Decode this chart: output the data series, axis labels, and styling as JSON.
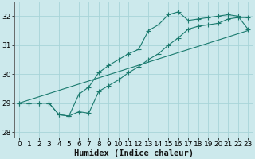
{
  "xlabel": "Humidex (Indice chaleur)",
  "background_color": "#cce9ec",
  "grid_color": "#a8d4d8",
  "line_color": "#1a7a6e",
  "x_values": [
    0,
    1,
    2,
    3,
    4,
    5,
    6,
    7,
    8,
    9,
    10,
    11,
    12,
    13,
    14,
    15,
    16,
    17,
    18,
    19,
    20,
    21,
    22,
    23
  ],
  "line1_y": [
    29.0,
    29.0,
    29.0,
    29.0,
    28.6,
    28.55,
    29.3,
    29.55,
    30.05,
    30.3,
    30.5,
    30.7,
    30.85,
    31.5,
    31.7,
    32.05,
    32.15,
    31.85,
    31.9,
    31.95,
    32.0,
    32.05,
    32.0,
    31.55
  ],
  "line2_y": [
    29.0,
    29.0,
    29.0,
    29.0,
    28.6,
    28.55,
    28.7,
    28.65,
    29.4,
    29.6,
    29.8,
    30.05,
    30.25,
    30.5,
    30.7,
    31.0,
    31.25,
    31.55,
    31.65,
    31.7,
    31.75,
    31.9,
    31.95,
    31.95
  ],
  "trend_x": [
    0,
    23
  ],
  "trend_y": [
    29.0,
    31.5
  ],
  "ylim": [
    27.8,
    32.5
  ],
  "xlim": [
    -0.5,
    23.5
  ],
  "yticks": [
    28,
    29,
    30,
    31,
    32
  ],
  "xticks": [
    0,
    1,
    2,
    3,
    4,
    5,
    6,
    7,
    8,
    9,
    10,
    11,
    12,
    13,
    14,
    15,
    16,
    17,
    18,
    19,
    20,
    21,
    22,
    23
  ],
  "tick_fontsize": 6.5,
  "xlabel_fontsize": 7.5
}
